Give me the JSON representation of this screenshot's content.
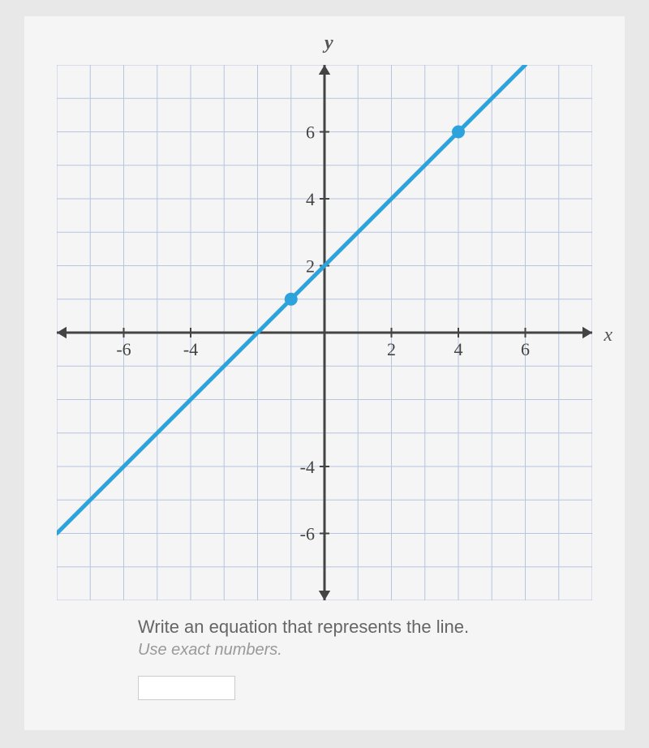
{
  "chart": {
    "type": "line",
    "background_color": "#f5f5f5",
    "grid_color": "#b8c4e0",
    "axis_color": "#444444",
    "line_color": "#2ca3dd",
    "point_color": "#2ca3dd",
    "line_width": 5,
    "point_radius": 8,
    "xlim": [
      -8,
      8
    ],
    "ylim": [
      -8,
      8
    ],
    "grid_step": 1,
    "xticks": [
      -6,
      -4,
      2,
      4,
      6
    ],
    "yticks": [
      -6,
      -4,
      2,
      4,
      6
    ],
    "tick_fontsize": 22,
    "axis_labels": {
      "x": "x",
      "y": "y"
    },
    "label_fontsize": 24,
    "label_color": "#555555",
    "points": [
      {
        "x": -1,
        "y": 1
      },
      {
        "x": 4,
        "y": 6
      }
    ],
    "line": {
      "slope": 1,
      "intercept": 2
    }
  },
  "prompt": {
    "main": "Write an equation that represents the line.",
    "sub": "Use exact numbers."
  }
}
